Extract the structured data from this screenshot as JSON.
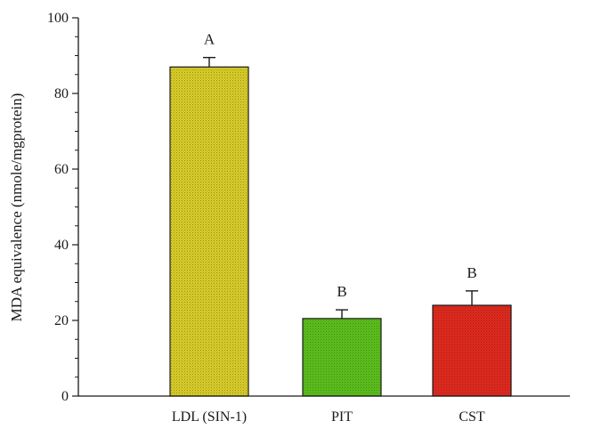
{
  "chart_data": {
    "type": "bar",
    "categories": [
      "LDL (SIN-1)",
      "PIT",
      "CST"
    ],
    "values": [
      87,
      20.5,
      24
    ],
    "errors": [
      2.5,
      2.3,
      3.8
    ],
    "significance": [
      "A",
      "B",
      "B"
    ],
    "colors": [
      "#d8cc2a",
      "#5cbf1c",
      "#e02a1e"
    ],
    "xlabel": "",
    "ylabel": "MDA equivalence (nmole/mgprotein)",
    "ylim": [
      0,
      100
    ],
    "yticks": [
      0,
      20,
      40,
      60,
      80,
      100
    ],
    "grid": false,
    "legend": "none"
  }
}
